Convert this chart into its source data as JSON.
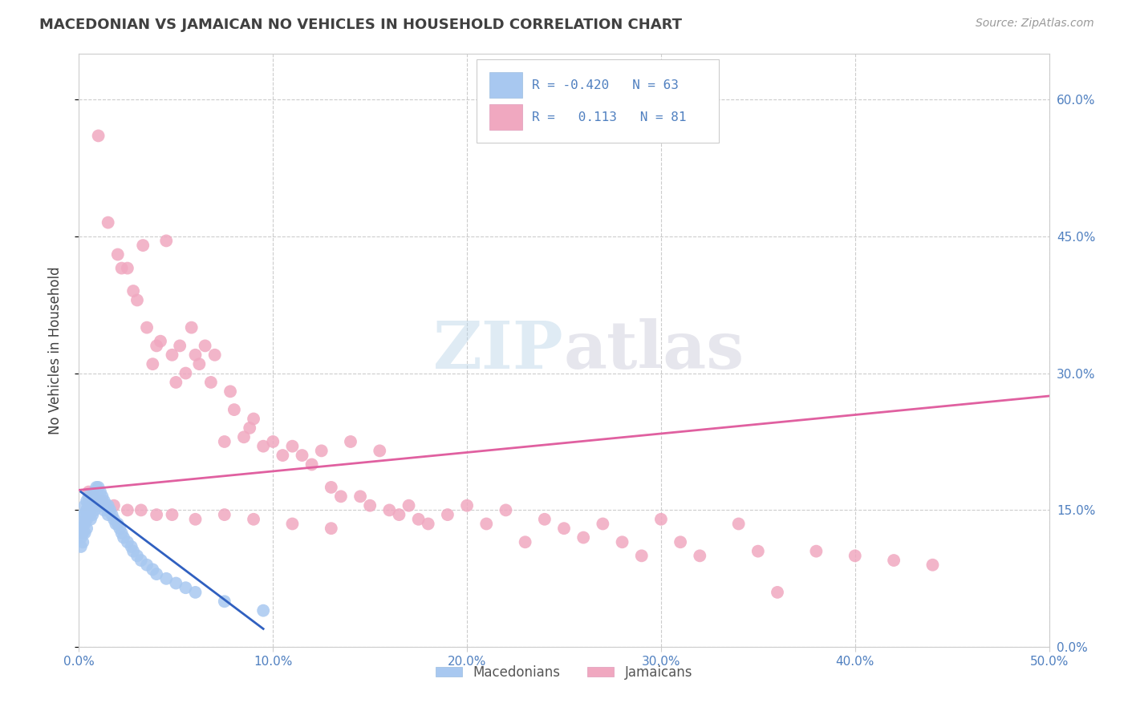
{
  "title": "MACEDONIAN VS JAMAICAN NO VEHICLES IN HOUSEHOLD CORRELATION CHART",
  "source": "Source: ZipAtlas.com",
  "ylabel": "No Vehicles in Household",
  "xlim": [
    0.0,
    0.5
  ],
  "ylim": [
    0.0,
    0.65
  ],
  "xticks": [
    0.0,
    0.1,
    0.2,
    0.3,
    0.4,
    0.5
  ],
  "xtick_labels": [
    "0.0%",
    "10.0%",
    "20.0%",
    "30.0%",
    "40.0%",
    "50.0%"
  ],
  "yticks": [
    0.0,
    0.15,
    0.3,
    0.45,
    0.6
  ],
  "macedonian_color": "#a8c8f0",
  "jamaican_color": "#f0a8c0",
  "macedonian_line_color": "#3060c0",
  "jamaican_line_color": "#e060a0",
  "legend_R_mac": "-0.420",
  "legend_N_mac": "63",
  "legend_R_jam": "0.113",
  "legend_N_jam": "81",
  "legend_text_color": "#5080c0",
  "title_color": "#404040",
  "background_color": "#ffffff",
  "grid_color": "#cccccc",
  "macedonian_x": [
    0.001,
    0.001,
    0.001,
    0.002,
    0.002,
    0.002,
    0.002,
    0.003,
    0.003,
    0.003,
    0.003,
    0.004,
    0.004,
    0.004,
    0.004,
    0.005,
    0.005,
    0.005,
    0.006,
    0.006,
    0.006,
    0.007,
    0.007,
    0.007,
    0.008,
    0.008,
    0.008,
    0.009,
    0.009,
    0.01,
    0.01,
    0.01,
    0.011,
    0.011,
    0.012,
    0.012,
    0.013,
    0.013,
    0.014,
    0.015,
    0.015,
    0.016,
    0.017,
    0.018,
    0.019,
    0.02,
    0.021,
    0.022,
    0.023,
    0.025,
    0.027,
    0.028,
    0.03,
    0.032,
    0.035,
    0.038,
    0.04,
    0.045,
    0.05,
    0.055,
    0.06,
    0.075,
    0.095
  ],
  "macedonian_y": [
    0.13,
    0.12,
    0.11,
    0.145,
    0.135,
    0.125,
    0.115,
    0.155,
    0.145,
    0.135,
    0.125,
    0.16,
    0.15,
    0.14,
    0.13,
    0.165,
    0.155,
    0.145,
    0.16,
    0.15,
    0.14,
    0.165,
    0.155,
    0.145,
    0.17,
    0.16,
    0.15,
    0.175,
    0.165,
    0.175,
    0.165,
    0.155,
    0.17,
    0.16,
    0.165,
    0.155,
    0.16,
    0.15,
    0.155,
    0.155,
    0.145,
    0.15,
    0.145,
    0.14,
    0.135,
    0.135,
    0.13,
    0.125,
    0.12,
    0.115,
    0.11,
    0.105,
    0.1,
    0.095,
    0.09,
    0.085,
    0.08,
    0.075,
    0.07,
    0.065,
    0.06,
    0.05,
    0.04
  ],
  "jamaican_x": [
    0.01,
    0.015,
    0.02,
    0.022,
    0.025,
    0.028,
    0.03,
    0.033,
    0.035,
    0.038,
    0.04,
    0.042,
    0.045,
    0.048,
    0.05,
    0.052,
    0.055,
    0.058,
    0.06,
    0.062,
    0.065,
    0.068,
    0.07,
    0.075,
    0.078,
    0.08,
    0.085,
    0.088,
    0.09,
    0.095,
    0.1,
    0.105,
    0.11,
    0.115,
    0.12,
    0.125,
    0.13,
    0.135,
    0.14,
    0.145,
    0.15,
    0.155,
    0.16,
    0.165,
    0.17,
    0.175,
    0.18,
    0.19,
    0.2,
    0.21,
    0.22,
    0.23,
    0.24,
    0.25,
    0.26,
    0.27,
    0.28,
    0.29,
    0.3,
    0.31,
    0.32,
    0.34,
    0.35,
    0.36,
    0.38,
    0.4,
    0.42,
    0.44,
    0.005,
    0.008,
    0.012,
    0.018,
    0.025,
    0.032,
    0.04,
    0.048,
    0.06,
    0.075,
    0.09,
    0.11,
    0.13
  ],
  "jamaican_y": [
    0.56,
    0.465,
    0.43,
    0.415,
    0.415,
    0.39,
    0.38,
    0.44,
    0.35,
    0.31,
    0.33,
    0.335,
    0.445,
    0.32,
    0.29,
    0.33,
    0.3,
    0.35,
    0.32,
    0.31,
    0.33,
    0.29,
    0.32,
    0.225,
    0.28,
    0.26,
    0.23,
    0.24,
    0.25,
    0.22,
    0.225,
    0.21,
    0.22,
    0.21,
    0.2,
    0.215,
    0.175,
    0.165,
    0.225,
    0.165,
    0.155,
    0.215,
    0.15,
    0.145,
    0.155,
    0.14,
    0.135,
    0.145,
    0.155,
    0.135,
    0.15,
    0.115,
    0.14,
    0.13,
    0.12,
    0.135,
    0.115,
    0.1,
    0.14,
    0.115,
    0.1,
    0.135,
    0.105,
    0.06,
    0.105,
    0.1,
    0.095,
    0.09,
    0.17,
    0.165,
    0.16,
    0.155,
    0.15,
    0.15,
    0.145,
    0.145,
    0.14,
    0.145,
    0.14,
    0.135,
    0.13
  ],
  "jam_line_x": [
    0.0,
    0.5
  ],
  "jam_line_y": [
    0.172,
    0.275
  ],
  "mac_line_x": [
    0.001,
    0.095
  ],
  "mac_line_y": [
    0.17,
    0.02
  ]
}
